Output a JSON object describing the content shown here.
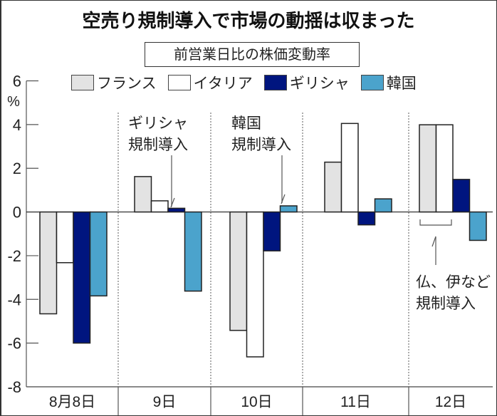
{
  "chart_data": {
    "type": "bar",
    "title": "空売り規制導入で市場の動揺は収まった",
    "subtitle": "前営業日比の株価変動率",
    "xlabel": "",
    "ylabel": "%",
    "ylim": [
      -8,
      6
    ],
    "yticks": [
      6,
      4,
      2,
      0,
      -2,
      -4,
      -6,
      -8
    ],
    "ytick_labels": [
      "6",
      "4",
      "2",
      "0",
      "-2",
      "-4",
      "-6",
      "-8"
    ],
    "grid": false,
    "legend_position": "top",
    "categories": [
      "8月8日",
      "9日",
      "10日",
      "11日",
      "12日"
    ],
    "series": [
      {
        "name": "フランス",
        "color": "#e3e3e3",
        "values": [
          -4.66,
          1.62,
          -5.42,
          2.28,
          3.99
        ]
      },
      {
        "name": "イタリア",
        "color": "#ffffff",
        "values": [
          -2.32,
          0.51,
          -6.63,
          4.05,
          3.99
        ]
      },
      {
        "name": "ギリシャ",
        "color": "#00157f",
        "values": [
          -6.0,
          0.17,
          -1.78,
          -0.59,
          1.49
        ]
      },
      {
        "name": "韓国",
        "color": "#4ba3cc",
        "values": [
          -3.84,
          -3.62,
          0.28,
          0.6,
          -1.3
        ]
      }
    ],
    "annotations": [
      {
        "category": "9日",
        "target_series": "ギリシャ",
        "lines": [
          "ギリシャ",
          "規制導入"
        ]
      },
      {
        "category": "10日",
        "target_series": "韓国",
        "lines": [
          "韓国",
          "規制導入"
        ]
      },
      {
        "category": "12日",
        "target_series": [
          "フランス",
          "イタリア"
        ],
        "lines": [
          "仏、伊など",
          "規制導入"
        ]
      }
    ]
  }
}
